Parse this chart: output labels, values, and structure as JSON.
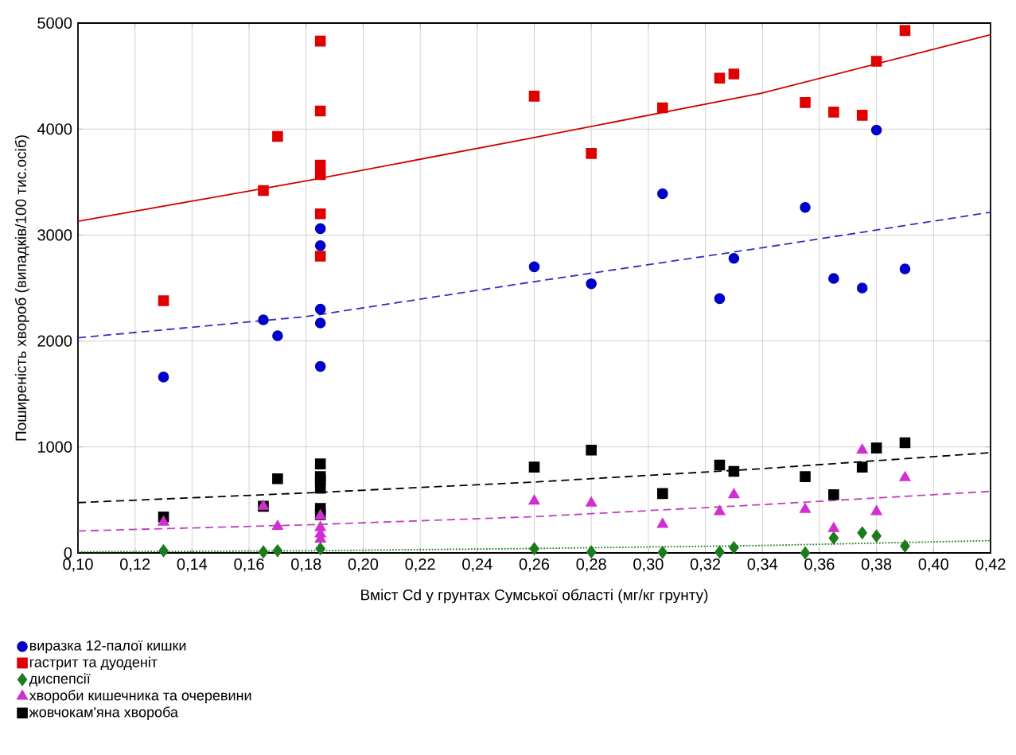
{
  "chart_data": {
    "type": "scatter",
    "xlabel": "Вміст Cd у грунтах Сумської області (мг/кг грунту)",
    "ylabel": "Поширеність хвороб (випадків/100 тис.осіб)",
    "xlim": [
      0.1,
      0.42
    ],
    "ylim": [
      0,
      5000
    ],
    "xticks": [
      {
        "value": 0.1,
        "label": "0,10"
      },
      {
        "value": 0.12,
        "label": "0,12"
      },
      {
        "value": 0.14,
        "label": "0,14"
      },
      {
        "value": 0.16,
        "label": "0,16"
      },
      {
        "value": 0.18,
        "label": "0,18"
      },
      {
        "value": 0.2,
        "label": "0,20"
      },
      {
        "value": 0.22,
        "label": "0,22"
      },
      {
        "value": 0.24,
        "label": "0,24"
      },
      {
        "value": 0.26,
        "label": "0,26"
      },
      {
        "value": 0.28,
        "label": "0,28"
      },
      {
        "value": 0.3,
        "label": "0,30"
      },
      {
        "value": 0.32,
        "label": "0,32"
      },
      {
        "value": 0.34,
        "label": "0,34"
      },
      {
        "value": 0.36,
        "label": "0,36"
      },
      {
        "value": 0.38,
        "label": "0,38"
      },
      {
        "value": 0.4,
        "label": "0,40"
      },
      {
        "value": 0.42,
        "label": "0,42"
      }
    ],
    "yticks": [
      0,
      1000,
      2000,
      3000,
      4000,
      5000
    ],
    "grid": true,
    "legend": "bottom left",
    "series": [
      {
        "name": "виразка 12-палої кишки",
        "color": "#0000c8",
        "marker": "circle",
        "x": [
          0.13,
          0.165,
          0.17,
          0.185,
          0.185,
          0.185,
          0.185,
          0.185,
          0.26,
          0.28,
          0.305,
          0.325,
          0.33,
          0.355,
          0.365,
          0.375,
          0.38,
          0.39
        ],
        "values": [
          1660,
          2200,
          2050,
          3060,
          2900,
          2300,
          2170,
          1760,
          2700,
          2540,
          3390,
          2400,
          2780,
          3260,
          2590,
          2500,
          3990,
          2680
        ]
      },
      {
        "name": "гастрит та дуоденіт",
        "color": "#e00000",
        "marker": "square",
        "x": [
          0.13,
          0.165,
          0.17,
          0.185,
          0.185,
          0.185,
          0.185,
          0.185,
          0.185,
          0.26,
          0.28,
          0.305,
          0.325,
          0.33,
          0.355,
          0.365,
          0.375,
          0.38,
          0.39
        ],
        "values": [
          2380,
          3420,
          3930,
          4830,
          4170,
          3660,
          3570,
          3200,
          2800,
          4310,
          3770,
          4200,
          4480,
          4520,
          4250,
          4160,
          4130,
          4640,
          4930
        ]
      },
      {
        "name": "диспепсії",
        "color": "#1e7a1e",
        "marker": "diamond",
        "x": [
          0.13,
          0.165,
          0.17,
          0.185,
          0.26,
          0.28,
          0.305,
          0.325,
          0.33,
          0.355,
          0.365,
          0.375,
          0.38,
          0.39
        ],
        "values": [
          20,
          10,
          20,
          40,
          40,
          10,
          5,
          10,
          50,
          0,
          140,
          190,
          160,
          65
        ]
      },
      {
        "name": "хвороби кишечника та очеревини",
        "color": "#d030d0",
        "marker": "triangle",
        "x": [
          0.13,
          0.165,
          0.17,
          0.185,
          0.185,
          0.185,
          0.185,
          0.26,
          0.28,
          0.305,
          0.325,
          0.33,
          0.355,
          0.365,
          0.375,
          0.38,
          0.39
        ],
        "values": [
          290,
          440,
          250,
          350,
          240,
          180,
          130,
          490,
          470,
          270,
          390,
          550,
          410,
          230,
          970,
          390,
          710
        ]
      },
      {
        "name": "жовчокам'яна хвороба",
        "color": "#000000",
        "marker": "square",
        "x": [
          0.13,
          0.165,
          0.17,
          0.185,
          0.185,
          0.185,
          0.185,
          0.185,
          0.185,
          0.26,
          0.28,
          0.305,
          0.325,
          0.33,
          0.355,
          0.365,
          0.375,
          0.38,
          0.39
        ],
        "values": [
          340,
          440,
          700,
          840,
          720,
          690,
          610,
          420,
          360,
          810,
          970,
          560,
          830,
          770,
          720,
          550,
          810,
          990,
          1040
        ]
      },
      {
        "type": "line",
        "color": "#3030c0",
        "line_style": "dashed",
        "x": [
          0.1,
          0.18,
          0.26,
          0.34,
          0.42
        ],
        "values": [
          2030,
          2230,
          2560,
          2880,
          3215
        ]
      },
      {
        "type": "line",
        "color": "#d00000",
        "line_style": "solid",
        "x": [
          0.1,
          0.18,
          0.26,
          0.34,
          0.42
        ],
        "values": [
          3130,
          3510,
          3920,
          4340,
          4890
        ]
      },
      {
        "type": "line",
        "color": "#208020",
        "line_style": "dotted",
        "x": [
          0.1,
          0.18,
          0.26,
          0.34,
          0.42
        ],
        "values": [
          10,
          20,
          42,
          70,
          116
        ]
      },
      {
        "type": "line",
        "color": "#c040c0",
        "line_style": "dashed",
        "x": [
          0.1,
          0.18,
          0.26,
          0.34,
          0.42
        ],
        "values": [
          207,
          265,
          342,
          456,
          581
        ]
      },
      {
        "type": "line",
        "color": "#000000",
        "line_style": "dashed",
        "x": [
          0.1,
          0.18,
          0.26,
          0.34,
          0.42
        ],
        "values": [
          475,
          566,
          669,
          795,
          946
        ]
      }
    ]
  }
}
